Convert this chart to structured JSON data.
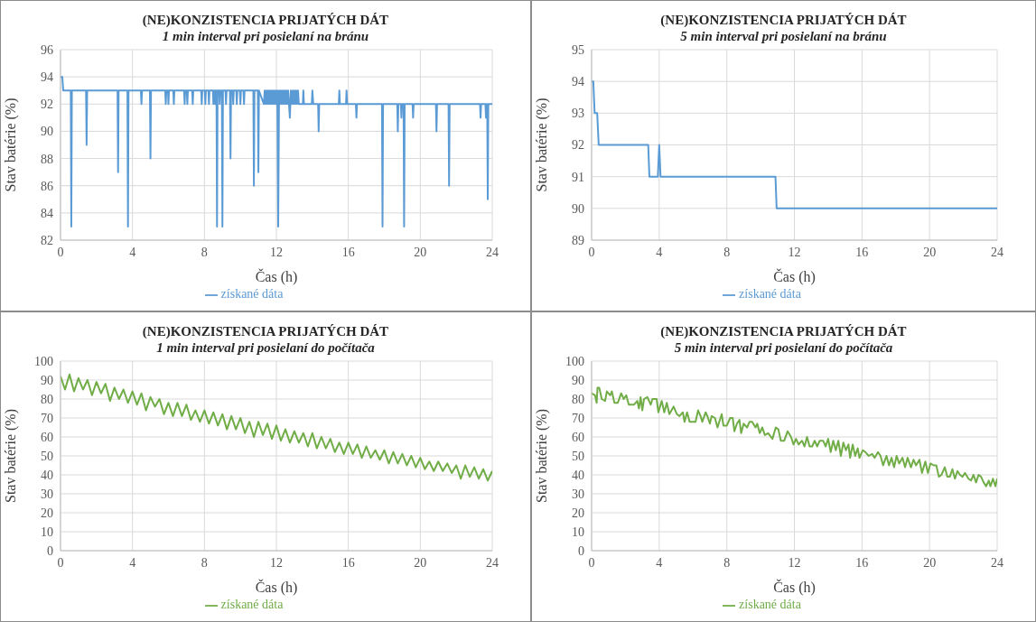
{
  "chart_data": [
    {
      "type": "line",
      "title": "(NE)KONZISTENCIA PRIJATÝCH DÁT",
      "subtitle": "1 min interval pri posielaní na bránu",
      "xlabel": "Čas (h)",
      "ylabel": "Stav batérie (%)",
      "xlim": [
        0,
        24
      ],
      "xticks": [
        0,
        4,
        8,
        12,
        16,
        20,
        24
      ],
      "ylim": [
        82,
        96
      ],
      "yticks": [
        82,
        84,
        86,
        88,
        90,
        92,
        94,
        96
      ],
      "grid": true,
      "legend": "bottom",
      "marker": "none",
      "line_style": "solid",
      "series": [
        {
          "name": "získané dáta",
          "color": "#5b9bd5",
          "x": [
            0,
            0.1,
            0.15,
            0.57,
            0.6,
            0.63,
            1.42,
            1.45,
            1.48,
            3.17,
            3.2,
            3.23,
            3.72,
            3.75,
            3.78,
            4.47,
            4.5,
            4.53,
            4.97,
            5.0,
            5.03,
            5.82,
            5.85,
            5.88,
            5.97,
            6.0,
            6.03,
            6.27,
            6.3,
            6.33,
            6.87,
            6.9,
            6.93,
            7.02,
            7.05,
            7.08,
            7.32,
            7.35,
            7.38,
            7.82,
            7.85,
            7.88,
            8.02,
            8.05,
            8.08,
            8.22,
            8.25,
            8.28,
            8.47,
            8.5,
            8.53,
            8.57,
            8.6,
            8.63,
            8.67,
            8.7,
            8.73,
            8.82,
            8.85,
            8.88,
            8.97,
            9.0,
            9.03,
            9.17,
            9.2,
            9.23,
            9.42,
            9.45,
            9.48,
            9.57,
            9.6,
            9.63,
            9.77,
            9.8,
            9.83,
            9.97,
            10.0,
            10.03,
            10.17,
            10.2,
            10.23,
            10.72,
            10.75,
            10.78,
            10.97,
            11.0,
            11.03,
            11.3,
            11.35,
            11.4,
            11.45,
            11.5,
            11.55,
            11.6,
            11.65,
            11.7,
            11.75,
            11.8,
            11.85,
            11.9,
            11.95,
            12.0,
            12.05,
            12.1,
            12.15,
            12.2,
            12.25,
            12.3,
            12.35,
            12.4,
            12.45,
            12.5,
            12.55,
            12.6,
            12.65,
            12.7,
            12.75,
            12.8,
            12.85,
            12.9,
            12.95,
            13.0,
            13.05,
            13.1,
            13.15,
            13.2,
            13.25,
            13.47,
            13.5,
            13.53,
            13.97,
            14.0,
            14.05,
            14.32,
            14.35,
            14.38,
            15.47,
            15.5,
            15.53,
            15.87,
            15.9,
            15.93,
            16.42,
            16.45,
            16.48,
            17.87,
            17.9,
            17.93,
            18.72,
            18.75,
            18.78,
            18.92,
            18.95,
            18.98,
            19.07,
            19.1,
            19.13,
            19.57,
            19.6,
            19.63,
            20.87,
            20.9,
            20.93,
            21.57,
            21.6,
            21.63,
            23.32,
            23.35,
            23.38,
            23.62,
            23.65,
            23.68,
            23.72,
            23.75,
            23.78,
            24
          ],
          "values": [
            94,
            94,
            93,
            93,
            83,
            93,
            93,
            89,
            93,
            93,
            87,
            93,
            93,
            83,
            93,
            93,
            92,
            93,
            93,
            88,
            93,
            93,
            92,
            93,
            93,
            92,
            93,
            93,
            92,
            93,
            93,
            92,
            93,
            93,
            92,
            93,
            93,
            92,
            93,
            93,
            92,
            93,
            93,
            92,
            93,
            93,
            92,
            93,
            93,
            92,
            93,
            93,
            92,
            93,
            93,
            83,
            93,
            93,
            92,
            93,
            93,
            83,
            93,
            93,
            92,
            93,
            93,
            88,
            93,
            93,
            92,
            93,
            93,
            92,
            93,
            93,
            92,
            93,
            93,
            92,
            93,
            93,
            86,
            93,
            93,
            87,
            93,
            92,
            93,
            92,
            93,
            92,
            93,
            92,
            93,
            92,
            93,
            92,
            93,
            92,
            93,
            92,
            93,
            83,
            93,
            92,
            93,
            92,
            93,
            92,
            93,
            92,
            93,
            92,
            93,
            92,
            91,
            93,
            92,
            93,
            92,
            93,
            92,
            93,
            92,
            93,
            92,
            92,
            93,
            92,
            92,
            93,
            92,
            92,
            90,
            92,
            92,
            93,
            92,
            92,
            93,
            92,
            92,
            91,
            92,
            92,
            83,
            92,
            92,
            90,
            92,
            92,
            91,
            92,
            92,
            83,
            92,
            92,
            91,
            92,
            92,
            90,
            92,
            92,
            86,
            92,
            92,
            91,
            92,
            92,
            91,
            92,
            92,
            85,
            92,
            92
          ]
        }
      ]
    },
    {
      "type": "line",
      "title": "(NE)KONZISTENCIA PRIJATÝCH DÁT",
      "subtitle": "5 min interval pri posielaní na bránu",
      "xlabel": "Čas (h)",
      "ylabel": "Stav batérie (%)",
      "xlim": [
        0,
        24
      ],
      "xticks": [
        0,
        4,
        8,
        12,
        16,
        20,
        24
      ],
      "ylim": [
        89,
        95
      ],
      "yticks": [
        89,
        90,
        91,
        92,
        93,
        94,
        95
      ],
      "grid": true,
      "legend": "bottom",
      "marker": "none",
      "line_style": "solid",
      "series": [
        {
          "name": "získané dáta",
          "color": "#5b9bd5",
          "x": [
            0,
            0.1,
            0.18,
            0.33,
            0.42,
            3.35,
            3.42,
            3.92,
            4.0,
            4.08,
            10.88,
            10.95,
            24
          ],
          "values": [
            94,
            94,
            93,
            93,
            92,
            92,
            91,
            91,
            92,
            91,
            91,
            90,
            90
          ]
        }
      ]
    },
    {
      "type": "line",
      "title": "(NE)KONZISTENCIA PRIJATÝCH DÁT",
      "subtitle": "1 min interval pri posielaní do počítača",
      "xlabel": "Čas (h)",
      "ylabel": "Stav batérie (%)",
      "xlim": [
        0,
        24
      ],
      "xticks": [
        0,
        4,
        8,
        12,
        16,
        20,
        24
      ],
      "ylim": [
        0,
        100
      ],
      "yticks": [
        0,
        10,
        20,
        30,
        40,
        50,
        60,
        70,
        80,
        90,
        100
      ],
      "grid": true,
      "legend": "bottom",
      "marker": "none",
      "line_style": "solid",
      "series": [
        {
          "name": "získané dáta",
          "color": "#70ad47",
          "x": [
            0,
            0.25,
            0.5,
            0.75,
            1,
            1.25,
            1.5,
            1.75,
            2,
            2.25,
            2.5,
            2.75,
            3,
            3.25,
            3.5,
            3.75,
            4,
            4.25,
            4.5,
            4.75,
            5,
            5.25,
            5.5,
            5.75,
            6,
            6.25,
            6.5,
            6.75,
            7,
            7.25,
            7.5,
            7.75,
            8,
            8.25,
            8.5,
            8.75,
            9,
            9.25,
            9.5,
            9.75,
            10,
            10.25,
            10.5,
            10.75,
            11,
            11.25,
            11.5,
            11.75,
            12,
            12.25,
            12.5,
            12.75,
            13,
            13.25,
            13.5,
            13.75,
            14,
            14.25,
            14.5,
            14.75,
            15,
            15.25,
            15.5,
            15.75,
            16,
            16.25,
            16.5,
            16.75,
            17,
            17.25,
            17.5,
            17.75,
            18,
            18.25,
            18.5,
            18.75,
            19,
            19.25,
            19.5,
            19.75,
            20,
            20.25,
            20.5,
            20.75,
            21,
            21.25,
            21.5,
            21.75,
            22,
            22.25,
            22.5,
            22.75,
            23,
            23.25,
            23.5,
            23.75,
            24
          ],
          "values": [
            92,
            85,
            93,
            84,
            91,
            85,
            90,
            82,
            89,
            83,
            88,
            79,
            86,
            80,
            85,
            78,
            84,
            77,
            83,
            74,
            81,
            76,
            80,
            72,
            78,
            71,
            78,
            71,
            77,
            69,
            74,
            68,
            74,
            67,
            73,
            66,
            72,
            64,
            71,
            64,
            70,
            62,
            68,
            60,
            68,
            61,
            67,
            59,
            66,
            58,
            64,
            57,
            63,
            57,
            62,
            55,
            62,
            54,
            60,
            54,
            59,
            52,
            57,
            51,
            57,
            51,
            56,
            49,
            55,
            49,
            53,
            48,
            53,
            46,
            52,
            46,
            51,
            45,
            50,
            44,
            49,
            43,
            47,
            42,
            47,
            42,
            46,
            41,
            45,
            38,
            45,
            39,
            44,
            38,
            43,
            37,
            42
          ]
        }
      ]
    },
    {
      "type": "line",
      "title": "(NE)KONZISTENCIA PRIJATÝCH DÁT",
      "subtitle": "5 min interval pri posielaní do počítača",
      "xlabel": "Čas (h)",
      "ylabel": "Stav batérie (%)",
      "xlim": [
        0,
        24
      ],
      "xticks": [
        0,
        4,
        8,
        12,
        16,
        20,
        24
      ],
      "ylim": [
        0,
        100
      ],
      "yticks": [
        0,
        10,
        20,
        30,
        40,
        50,
        60,
        70,
        80,
        90,
        100
      ],
      "grid": true,
      "legend": "bottom",
      "marker": "none",
      "line_style": "solid",
      "series": [
        {
          "name": "získané dáta",
          "color": "#70ad47",
          "x": [
            0,
            0.2,
            0.3,
            0.35,
            0.45,
            0.6,
            0.8,
            0.9,
            1.1,
            1.2,
            1.35,
            1.55,
            1.75,
            1.9,
            2.05,
            2.2,
            2.5,
            2.7,
            2.8,
            2.9,
            3.0,
            3.1,
            3.3,
            3.5,
            3.6,
            3.85,
            3.95,
            4.15,
            4.3,
            4.45,
            4.6,
            4.85,
            5.05,
            5.2,
            5.4,
            5.5,
            5.65,
            5.8,
            6.15,
            6.3,
            6.45,
            6.55,
            6.75,
            6.85,
            7.0,
            7.1,
            7.3,
            7.45,
            7.7,
            7.8,
            8.0,
            8.2,
            8.35,
            8.45,
            8.6,
            8.75,
            8.85,
            9.0,
            9.2,
            9.35,
            9.5,
            9.7,
            9.8,
            9.95,
            10.1,
            10.25,
            10.45,
            10.7,
            10.9,
            11.05,
            11.2,
            11.4,
            11.6,
            11.8,
            11.95,
            12.1,
            12.25,
            12.45,
            12.6,
            12.75,
            12.9,
            13.05,
            13.2,
            13.35,
            13.5,
            13.7,
            13.85,
            14.0,
            14.15,
            14.3,
            14.45,
            14.6,
            14.75,
            14.9,
            15.05,
            15.2,
            15.3,
            15.45,
            15.6,
            15.75,
            15.85,
            16.05,
            16.2,
            16.4,
            16.6,
            16.75,
            16.95,
            17.1,
            17.25,
            17.45,
            17.6,
            17.75,
            17.9,
            18.05,
            18.2,
            18.4,
            18.55,
            18.7,
            18.9,
            19.05,
            19.2,
            19.4,
            19.55,
            19.75,
            19.9,
            20.05,
            20.25,
            20.4,
            20.55,
            20.7,
            20.9,
            21.05,
            21.2,
            21.35,
            21.5,
            21.65,
            21.8,
            21.95,
            22.1,
            22.3,
            22.45,
            22.6,
            22.75,
            22.9,
            23.05,
            23.2,
            23.35,
            23.5,
            23.6,
            23.75,
            23.9,
            24.0
          ],
          "values": [
            83,
            82,
            78,
            86,
            86,
            80,
            79,
            84,
            82,
            84,
            78,
            78,
            83,
            80,
            82,
            77,
            77,
            79,
            75,
            81,
            74,
            80,
            81,
            77,
            80,
            80,
            73,
            79,
            73,
            78,
            72,
            76,
            72,
            71,
            73,
            68,
            73,
            68,
            68,
            74,
            71,
            68,
            73,
            71,
            67,
            71,
            70,
            65,
            72,
            66,
            66,
            70,
            70,
            63,
            67,
            69,
            62,
            67,
            65,
            68,
            68,
            65,
            67,
            62,
            65,
            61,
            62,
            59,
            65,
            64,
            58,
            58,
            63,
            60,
            56,
            59,
            56,
            58,
            55,
            60,
            55,
            55,
            58,
            55,
            58,
            58,
            55,
            59,
            52,
            58,
            53,
            58,
            50,
            57,
            53,
            56,
            49,
            56,
            50,
            54,
            49,
            53,
            52,
            50,
            51,
            49,
            52,
            50,
            45,
            50,
            45,
            49,
            44,
            50,
            46,
            49,
            44,
            49,
            44,
            48,
            45,
            48,
            41,
            47,
            41,
            46,
            45,
            45,
            39,
            40,
            44,
            39,
            39,
            43,
            38,
            42,
            40,
            39,
            41,
            38,
            37,
            40,
            36,
            40,
            39,
            36,
            34,
            37,
            34,
            38,
            34,
            38
          ]
        }
      ]
    }
  ]
}
